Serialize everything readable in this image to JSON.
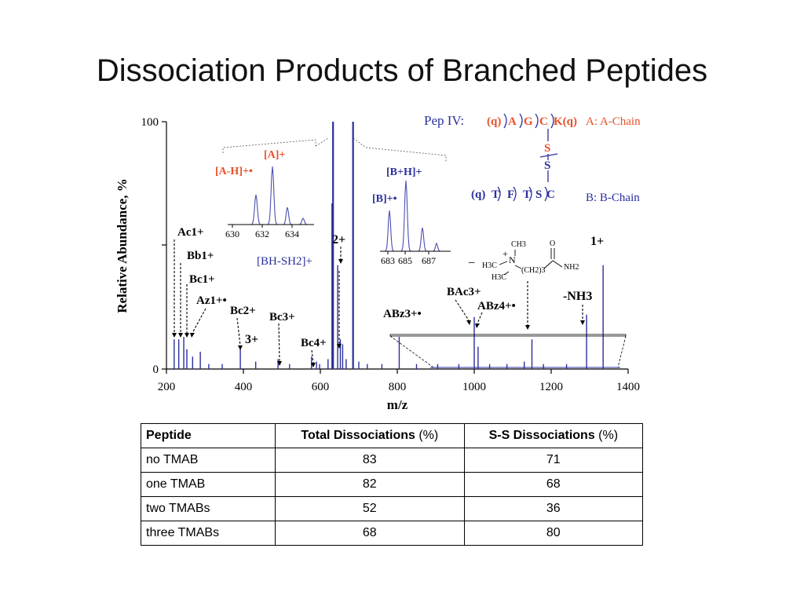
{
  "slide": {
    "title": "Dissociation Products of Branched Peptides"
  },
  "chart_data": {
    "type": "line",
    "xlabel": "m/z",
    "ylabel": "Relative Abundance, %",
    "xlim": [
      200,
      1400
    ],
    "ylim": [
      0,
      100
    ],
    "x_ticks": [
      "200",
      "400",
      "600",
      "800",
      "1000",
      "1200",
      "1400"
    ],
    "y_ticks": [
      "0",
      "100"
    ],
    "spectrum_color": "#2b2f9e",
    "peaks": [
      {
        "x": 220,
        "y": 12
      },
      {
        "x": 232,
        "y": 12
      },
      {
        "x": 245,
        "y": 13
      },
      {
        "x": 253,
        "y": 8
      },
      {
        "x": 268,
        "y": 5
      },
      {
        "x": 288,
        "y": 7
      },
      {
        "x": 310,
        "y": 2
      },
      {
        "x": 345,
        "y": 2
      },
      {
        "x": 392,
        "y": 8
      },
      {
        "x": 432,
        "y": 3
      },
      {
        "x": 490,
        "y": 4
      },
      {
        "x": 520,
        "y": 2
      },
      {
        "x": 577,
        "y": 5
      },
      {
        "x": 590,
        "y": 3
      },
      {
        "x": 598,
        "y": 2
      },
      {
        "x": 620,
        "y": 4
      },
      {
        "x": 631,
        "y": 67
      },
      {
        "x": 633,
        "y": 100
      },
      {
        "x": 645,
        "y": 42
      },
      {
        "x": 652,
        "y": 12
      },
      {
        "x": 658,
        "y": 10
      },
      {
        "x": 667,
        "y": 4
      },
      {
        "x": 685,
        "y": 100
      },
      {
        "x": 700,
        "y": 3
      },
      {
        "x": 722,
        "y": 2
      },
      {
        "x": 760,
        "y": 2
      },
      {
        "x": 805,
        "y": 13
      },
      {
        "x": 850,
        "y": 2
      },
      {
        "x": 905,
        "y": 2
      },
      {
        "x": 960,
        "y": 2
      },
      {
        "x": 1000,
        "y": 21
      },
      {
        "x": 1010,
        "y": 9
      },
      {
        "x": 1040,
        "y": 2
      },
      {
        "x": 1085,
        "y": 2
      },
      {
        "x": 1130,
        "y": 3
      },
      {
        "x": 1150,
        "y": 12
      },
      {
        "x": 1180,
        "y": 2
      },
      {
        "x": 1240,
        "y": 2
      },
      {
        "x": 1292,
        "y": 22
      },
      {
        "x": 1335,
        "y": 42
      }
    ],
    "annotations": {
      "ac1": "Ac1+",
      "bb1": "Bb1+",
      "bc1": "Bc1+",
      "az1": "Az1+•",
      "bc2": "Bc2+",
      "bc3": "Bc3+",
      "charge3": "3+",
      "bc4": "Bc4+",
      "charge2": "2+",
      "bh_sh2": "[BH-SH2]+",
      "abz3": "ABz3+•",
      "bac3": "BAc3+",
      "abz4": "ABz4+•",
      "nh3": "-NH3",
      "charge1": "1+"
    },
    "inset_a": {
      "labels": {
        "a_ion": "[A]+",
        "a_h": "[A-H]+•"
      },
      "ticks": [
        "630",
        "632",
        "634"
      ],
      "color": "#e8502a"
    },
    "inset_b": {
      "labels": {
        "bh": "[B+H]+",
        "b": "[B]+•"
      },
      "ticks": [
        "683",
        "685",
        "687"
      ],
      "color": "#2b2f9e"
    },
    "structure": {
      "pep_label": "Pep IV:",
      "a_chain": [
        "(q)",
        "A",
        "G",
        "C",
        "K(q)"
      ],
      "a_chain_label": "A: A-Chain",
      "s_top": "S",
      "s_bottom": "S",
      "b_chain": [
        "(q)",
        "T",
        "F",
        "T",
        "S",
        "C"
      ],
      "b_chain_label": "B: B-Chain",
      "tmab": {
        "ch3_top": "CH3",
        "o": "O",
        "plus": "+",
        "n": "N",
        "h3c_1": "H3C",
        "h3c_2": "H3C",
        "ch2": "(CH2)3",
        "nh2": "NH2",
        "minus": "−"
      }
    }
  },
  "table": {
    "headers": [
      {
        "main": "Peptide",
        "unit": ""
      },
      {
        "main": "Total Dissociations",
        "unit": "(%)"
      },
      {
        "main": "S-S Dissociations",
        "unit": "(%)"
      }
    ],
    "rows": [
      [
        "no TMAB",
        "83",
        "71"
      ],
      [
        "one TMAB",
        "82",
        "68"
      ],
      [
        "two TMABs",
        "52",
        "36"
      ],
      [
        "three TMABs",
        "68",
        "80"
      ]
    ]
  }
}
